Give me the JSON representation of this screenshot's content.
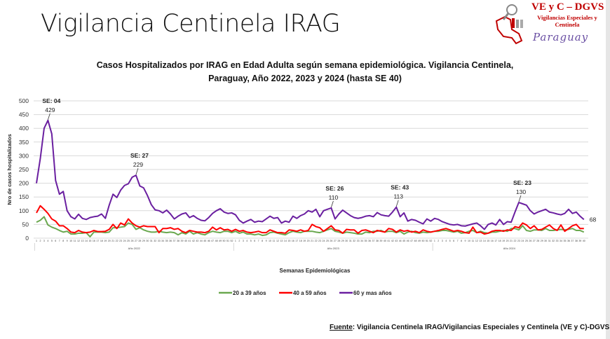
{
  "slide_title": "Vigilancia Centinela IRAG",
  "logo": {
    "main": "VE y C – DGVS",
    "sub": "Vigilancias Especiales y Centinela",
    "country": "Paraguay"
  },
  "source": {
    "label": "Fuente",
    "text": ": Vigilancia  Centinela IRAG/Vigilancias Especiales y Centinela (VE y C)-DGVS"
  },
  "colors": {
    "green": "#6aa84f",
    "red": "#ff0000",
    "purple": "#6a1fa0"
  },
  "chart_data": {
    "type": "line",
    "title": "Casos Hospitalizados por IRAG en Edad Adulta según semana epidemiológica. Vigilancia Centinela, Paraguay, Año 2022, 2023 y 2024 (hasta SE 40)",
    "title_lines": [
      "Casos Hospitalizados por IRAG en Edad Adulta según semana epidemiológica. Vigilancia Centinela,",
      "Paraguay, Año 2022, 2023 y 2024 (hasta SE 40)"
    ],
    "xlabel": "Semanas Epidemiológicas",
    "ylabel": "Nro de casos hospitalizados",
    "ylim": [
      0,
      500
    ],
    "yticks": [
      0,
      50,
      100,
      150,
      200,
      250,
      300,
      350,
      400,
      450,
      500
    ],
    "grid": true,
    "legend_position": "bottom",
    "years": [
      {
        "label": "Año 2022",
        "weeks": 52
      },
      {
        "label": "Año 2023",
        "weeks": 52
      },
      {
        "label": "Año 2024",
        "weeks": 40
      }
    ],
    "series": [
      {
        "name": "20 a 39 años",
        "color": "#6aa84f",
        "values": {
          "2022": [
            58,
            65,
            78,
            48,
            40,
            35,
            28,
            22,
            25,
            15,
            15,
            18,
            18,
            20,
            5,
            22,
            22,
            22,
            20,
            22,
            38,
            38,
            40,
            42,
            55,
            50,
            32,
            38,
            30,
            25,
            22,
            22,
            25,
            22,
            20,
            22,
            20,
            12,
            20,
            15,
            25,
            15,
            20,
            15,
            12,
            20,
            25,
            22,
            20,
            25,
            25,
            20
          ],
          "2023": [
            25,
            18,
            22,
            15,
            15,
            12,
            15,
            10,
            12,
            20,
            22,
            18,
            15,
            12,
            20,
            25,
            22,
            20,
            25,
            25,
            25,
            22,
            20,
            25,
            30,
            35,
            25,
            22,
            18,
            22,
            20,
            18,
            15,
            15,
            22,
            20,
            25,
            25,
            28,
            22,
            25,
            25,
            20,
            25,
            15,
            22,
            25,
            20,
            18,
            22,
            20,
            22
          ],
          "2024": [
            25,
            25,
            28,
            28,
            25,
            22,
            25,
            18,
            20,
            25,
            28,
            20,
            25,
            20,
            18,
            22,
            22,
            25,
            28,
            25,
            35,
            35,
            30,
            45,
            28,
            25,
            30,
            30,
            28,
            35,
            28,
            28,
            30,
            32,
            30,
            32,
            35,
            28,
            28,
            22
          ]
        }
      },
      {
        "name": "40 a 59 años",
        "color": "#ff0000",
        "values": {
          "2022": [
            92,
            118,
            105,
            90,
            70,
            62,
            45,
            45,
            35,
            22,
            20,
            28,
            22,
            20,
            22,
            28,
            24,
            24,
            25,
            32,
            50,
            35,
            55,
            48,
            70,
            55,
            45,
            40,
            45,
            42,
            42,
            42,
            20,
            35,
            35,
            38,
            32,
            35,
            25,
            20,
            28,
            25,
            22,
            22,
            20,
            25,
            40,
            30,
            38,
            30,
            32,
            25
          ],
          "2023": [
            32,
            25,
            28,
            22,
            20,
            22,
            25,
            20,
            20,
            30,
            25,
            20,
            20,
            18,
            30,
            28,
            25,
            30,
            25,
            28,
            50,
            42,
            38,
            25,
            35,
            45,
            30,
            28,
            18,
            32,
            30,
            30,
            18,
            28,
            30,
            25,
            20,
            28,
            25,
            22,
            35,
            32,
            22,
            30,
            25,
            28,
            22,
            25,
            20,
            30,
            25,
            22
          ],
          "2024": [
            25,
            28,
            32,
            35,
            30,
            25,
            28,
            25,
            20,
            18,
            40,
            20,
            22,
            15,
            18,
            25,
            28,
            28,
            25,
            30,
            28,
            42,
            38,
            55,
            48,
            35,
            45,
            30,
            32,
            40,
            48,
            35,
            28,
            48,
            25,
            35,
            45,
            50,
            35,
            35
          ]
        }
      },
      {
        "name": "60 y mas años",
        "color": "#6a1fa0",
        "values": {
          "2022": [
            200,
            290,
            400,
            429,
            380,
            210,
            160,
            170,
            100,
            78,
            70,
            87,
            72,
            68,
            75,
            78,
            80,
            88,
            72,
            120,
            160,
            148,
            175,
            192,
            198,
            222,
            229,
            190,
            183,
            155,
            122,
            103,
            100,
            92,
            102,
            88,
            70,
            80,
            88,
            92,
            75,
            82,
            72,
            65,
            63,
            75,
            90,
            100,
            107,
            95,
            90,
            92
          ],
          "2023": [
            85,
            65,
            55,
            62,
            68,
            58,
            62,
            60,
            70,
            80,
            72,
            75,
            55,
            62,
            58,
            80,
            72,
            82,
            88,
            100,
            95,
            105,
            78,
            100,
            105,
            110,
            70,
            88,
            102,
            92,
            82,
            75,
            72,
            75,
            80,
            82,
            78,
            93,
            85,
            82,
            80,
            95,
            113,
            78,
            92,
            62,
            68,
            65,
            58,
            52,
            70,
            62
          ],
          "2024": [
            72,
            68,
            60,
            55,
            50,
            48,
            50,
            45,
            44,
            48,
            52,
            55,
            45,
            32,
            50,
            55,
            48,
            68,
            50,
            60,
            58,
            95,
            130,
            125,
            120,
            100,
            88,
            95,
            100,
            105,
            95,
            92,
            88,
            85,
            90,
            105,
            90,
            95,
            80,
            68
          ]
        }
      }
    ],
    "annotations": [
      {
        "label": "SE: 04",
        "value": "429",
        "year": "2022",
        "week": 4
      },
      {
        "label": "SE: 27",
        "value": "229",
        "year": "2022",
        "week": 27
      },
      {
        "label": "SE: 26",
        "value": "110",
        "year": "2023",
        "week": 26
      },
      {
        "label": "SE: 43",
        "value": "113",
        "year": "2023",
        "week": 43
      },
      {
        "label": "SE: 23",
        "value": "130",
        "year": "2024",
        "week": 23
      },
      {
        "label": "",
        "value": "68",
        "year": "2024",
        "week": 40
      }
    ]
  }
}
